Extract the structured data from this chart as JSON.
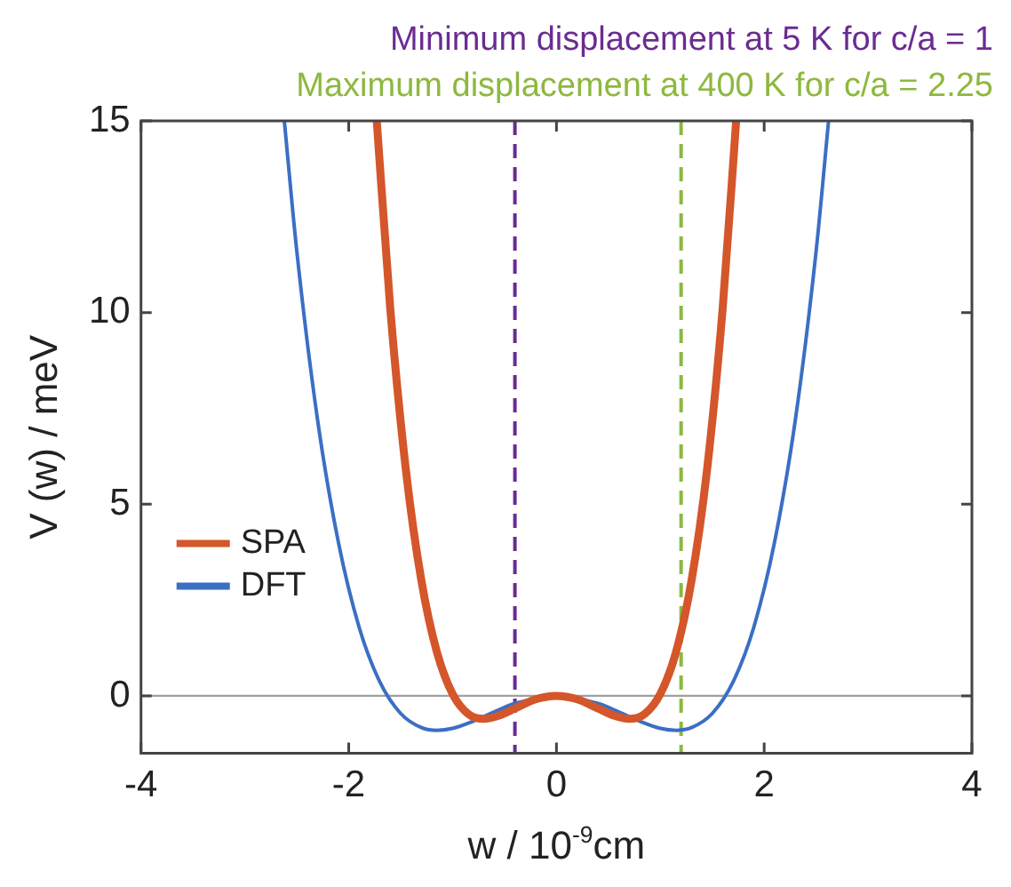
{
  "chart_data": {
    "type": "line",
    "xlabel": "w / 10$^{-9}$cm",
    "ylabel": "V (w) / meV",
    "xlim": [
      -4,
      4
    ],
    "xticks": [
      -4,
      -2,
      0,
      2,
      4
    ],
    "ylim": [
      -1.5,
      15
    ],
    "yticks": [
      0,
      5,
      10,
      15
    ],
    "grid": false,
    "legend": "bottom left",
    "marker": "none",
    "line_style": "solid",
    "series": [
      {
        "name": "SPA",
        "color": "#d4562a",
        "x": [
          -1.73,
          -1.6,
          -1.45,
          -1.3,
          -1.15,
          -1.0,
          -0.85,
          -0.7,
          -0.55,
          -0.4,
          -0.2,
          0,
          0.2,
          0.4,
          0.55,
          0.7,
          0.85,
          1.0,
          1.15,
          1.3,
          1.45,
          1.6,
          1.73
        ],
        "values": [
          15,
          10.1,
          5.9,
          3.0,
          1.13,
          0.05,
          -0.47,
          -0.6,
          -0.51,
          -0.33,
          -0.09,
          0,
          -0.09,
          -0.33,
          -0.51,
          -0.6,
          -0.47,
          0.05,
          1.13,
          3.0,
          5.9,
          10.1,
          15
        ]
      },
      {
        "name": "DFT",
        "color": "#3a6fc4",
        "x": [
          -2.62,
          -2.5,
          -2.3,
          -2.1,
          -1.9,
          -1.7,
          -1.5,
          -1.3,
          -1.15,
          -1.0,
          -0.8,
          -0.6,
          -0.4,
          -0.2,
          0,
          0.2,
          0.4,
          0.6,
          0.8,
          1.0,
          1.15,
          1.3,
          1.5,
          1.7,
          1.9,
          2.1,
          2.3,
          2.5,
          2.62
        ],
        "values": [
          15,
          11.6,
          7.2,
          4.01,
          1.79,
          0.36,
          -0.46,
          -0.83,
          -0.9,
          -0.85,
          -0.66,
          -0.42,
          -0.2,
          null,
          0,
          null,
          -0.2,
          -0.42,
          -0.66,
          -0.85,
          -0.9,
          -0.83,
          -0.46,
          0.36,
          1.79,
          4.01,
          7.2,
          11.6,
          15
        ]
      }
    ],
    "ref_lines": [
      {
        "axis": "y",
        "value": 0,
        "color": "#a0a0a0",
        "line_style": "solid"
      },
      {
        "axis": "x",
        "value": -0.4,
        "color": "#6a2c91",
        "line_style": "dashed"
      },
      {
        "axis": "x",
        "value": 1.2,
        "color": "#8db83f",
        "line_style": "dashed"
      }
    ],
    "annotations": [
      "Minimum displacement at 5 K for c/a = 1",
      "Maximum displacement at 400 K for c/a = 2.25"
    ]
  }
}
